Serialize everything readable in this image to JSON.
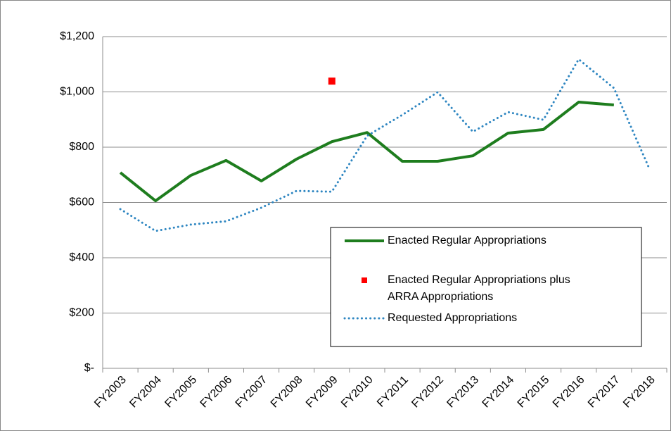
{
  "chart_data": {
    "type": "line",
    "categories": [
      "FY2003",
      "FY2004",
      "FY2005",
      "FY2006",
      "FY2007",
      "FY2008",
      "FY2009",
      "FY2010",
      "FY2011",
      "FY2012",
      "FY2013",
      "FY2014",
      "FY2015",
      "FY2016",
      "FY2017",
      "FY2018"
    ],
    "series": [
      {
        "name": "Enacted Regular Appropriations",
        "color": "#1e7d1e",
        "style": "solid",
        "values": [
          708,
          606,
          698,
          752,
          678,
          757,
          820,
          853,
          749,
          749,
          769,
          851,
          864,
          963,
          953,
          null
        ]
      },
      {
        "name": "Enacted Regular Appropriations plus ARRA Appropriations",
        "color": "#ff0000",
        "style": "marker",
        "values": [
          null,
          null,
          null,
          null,
          null,
          null,
          1039,
          null,
          null,
          null,
          null,
          null,
          null,
          null,
          null,
          null
        ]
      },
      {
        "name": "Requested Appropriations",
        "color": "#2e86c1",
        "style": "dotted",
        "values": [
          576,
          497,
          520,
          532,
          581,
          642,
          639,
          841,
          917,
          999,
          856,
          927,
          899,
          1118,
          1014,
          724
        ]
      }
    ],
    "ylim": [
      0,
      1200
    ],
    "yticks": [
      {
        "value": 0,
        "label": "$-"
      },
      {
        "value": 200,
        "label": "$200"
      },
      {
        "value": 400,
        "label": "$400"
      },
      {
        "value": 600,
        "label": "$600"
      },
      {
        "value": 800,
        "label": "$800"
      },
      {
        "value": 1000,
        "label": "$1,000"
      },
      {
        "value": 1200,
        "label": "$1,200"
      }
    ],
    "grid": true,
    "legend": "lower-right"
  }
}
